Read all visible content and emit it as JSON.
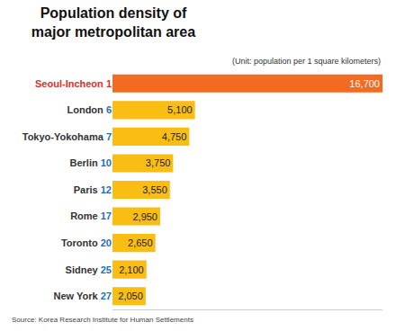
{
  "chart_data": {
    "type": "bar",
    "title": "Population density of\nmajor metropolitan area",
    "subtitle": "(Unit: population per 1 square kilometers)",
    "source": "Source: Korea Research Institute for Human Settlements",
    "categories": [
      "Seoul-Incheon",
      "London",
      "Tokyo-Yokohama",
      "Berlin",
      "Paris",
      "Rome",
      "Toronto",
      "Sidney",
      "New York"
    ],
    "ranks": [
      1,
      6,
      7,
      10,
      12,
      17,
      20,
      25,
      27
    ],
    "values": [
      16700,
      5100,
      4750,
      3750,
      3550,
      2950,
      2650,
      2100,
      2050
    ],
    "value_labels": [
      "16,700",
      "5,100",
      "4,750",
      "3,750",
      "3,550",
      "2,950",
      "2,650",
      "2,100",
      "2,050"
    ],
    "colors": [
      "#f26b21",
      "#f9bd14",
      "#f9bd14",
      "#f9bd14",
      "#f9bd14",
      "#f9bd14",
      "#f9bd14",
      "#f9bd14",
      "#f9bd14"
    ],
    "orientation": "horizontal",
    "data_labels": true,
    "tick_labels": "y",
    "grid": false,
    "xlim": [
      0,
      16700
    ]
  }
}
